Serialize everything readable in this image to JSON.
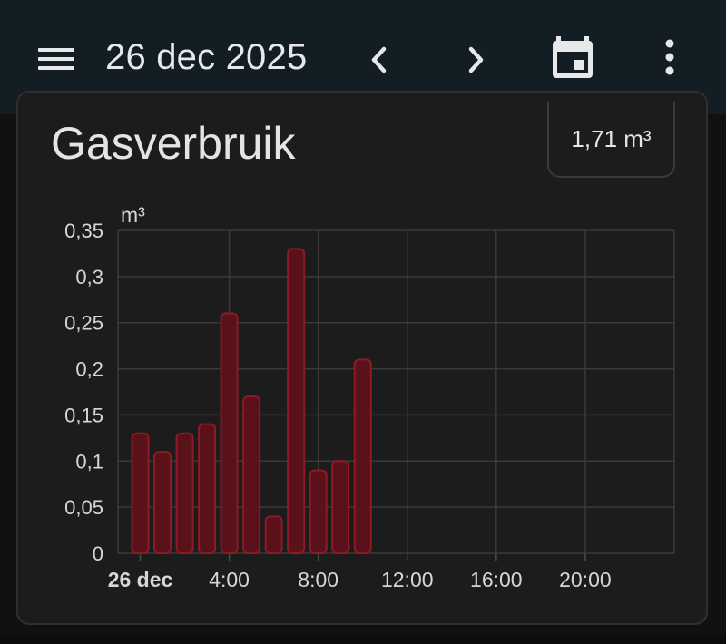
{
  "appbar": {
    "date": "26 dec 2025",
    "icons": {
      "menu": "menu-icon",
      "prev": "chevron-left-icon",
      "next": "chevron-right-icon",
      "calendar": "calendar-today-icon",
      "more": "more-vert-icon"
    }
  },
  "card": {
    "title": "Gasverbruik",
    "total": "1,71 m³"
  },
  "colors": {
    "appbar_bg": "#121d24",
    "bar_fill": "#5a1119",
    "bar_stroke": "#8e1a26"
  },
  "chart_data": {
    "type": "bar",
    "unit_label": "m³",
    "x_start_label": "26 dec",
    "x_tick_labels": [
      "26 dec",
      "4:00",
      "8:00",
      "12:00",
      "16:00",
      "20:00"
    ],
    "x_ticks_hours": [
      0,
      4,
      8,
      12,
      16,
      20
    ],
    "y_tick_labels": [
      "0",
      "0,05",
      "0,1",
      "0,15",
      "0,2",
      "0,25",
      "0,3",
      "0,35"
    ],
    "y_ticks": [
      0,
      0.05,
      0.1,
      0.15,
      0.2,
      0.25,
      0.3,
      0.35
    ],
    "ylim": [
      0,
      0.35
    ],
    "xlim_hours": [
      -1,
      24
    ],
    "grid": true,
    "x": [
      0,
      1,
      2,
      3,
      4,
      5,
      6,
      7,
      8,
      9,
      10
    ],
    "values": [
      0.13,
      0.11,
      0.13,
      0.14,
      0.26,
      0.17,
      0.04,
      0.33,
      0.09,
      0.1,
      0.21
    ]
  }
}
